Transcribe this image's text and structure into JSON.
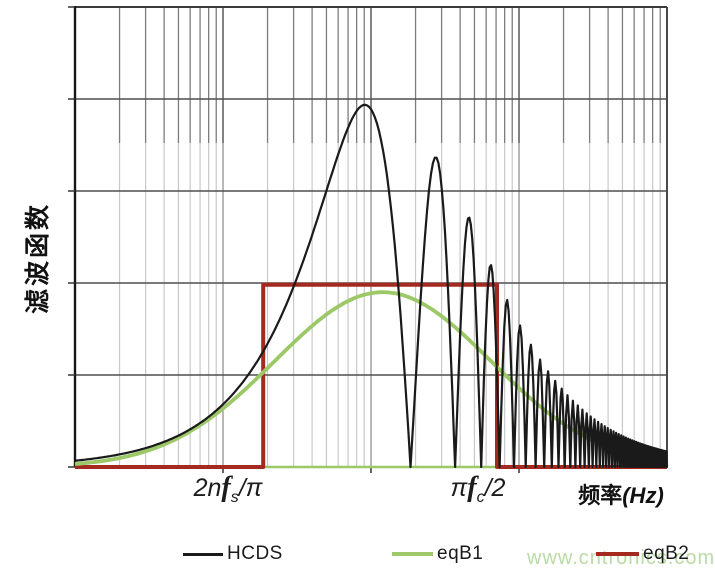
{
  "figure": {
    "y_axis_label": "滤波函数",
    "x_axis_label": {
      "cjk": "频率",
      "unit": "(Hz)"
    },
    "tick1": {
      "pre": "2n",
      "f": "f",
      "sub": "s",
      "post": "/π"
    },
    "tick2": {
      "pre": "π",
      "f": "f",
      "sub": "c",
      "post": "/2"
    },
    "watermark": "www.cntronics.com"
  },
  "style": {
    "background": "#ffffff",
    "axis_color": "#161616",
    "frame_color": "#4a4a4a",
    "grid_major_h": "#4f4f4f",
    "grid_minor_top": "#7d7d7d",
    "grid_minor_bottom": "#c9c9c9",
    "grid_decade_top": "#5a5a5a",
    "grid_decade_bottom": "#9a9a9a",
    "tick_color": "#333333",
    "watermark_color": "#b9dba4"
  },
  "chart_data": {
    "type": "line",
    "title": "",
    "x_axis": {
      "label": "频率(Hz)",
      "scale": "log10",
      "range": [
        1,
        10000
      ],
      "decades": 4,
      "ticks": [
        {
          "value": 10,
          "label": "2nfs/π"
        },
        {
          "value": 100,
          "label": ""
        },
        {
          "value": 1000,
          "label": "πfc/2"
        }
      ],
      "numeric_tick_labels_shown": false
    },
    "y_axis": {
      "label": "滤波函数",
      "range": [
        0,
        5
      ],
      "gridline_step": 1,
      "tick_labels_shown": false
    },
    "grid": {
      "horizontal": true,
      "vertical_log_minor": true
    },
    "legend_position": "bottom",
    "series": [
      {
        "name": "HCDS",
        "color": "#1a1a1a",
        "line_width": 2.2,
        "shape": "rectified oscillation |sin| under a low-pass envelope, zeros touch y=0",
        "model": {
          "type": "abs_sin_times_lowpass",
          "amplitude": 4.03,
          "sin_zero_spacing": 185,
          "lowpass_cutoff": 420
        },
        "key_points": {
          "main_peak": {
            "x": 92,
            "y": 3.94
          },
          "zeros_at_multiples_of": 185,
          "secondary_peaks": [
            {
              "x": 278,
              "y": 3.37
            },
            {
              "x": 462,
              "y": 2.76
            },
            {
              "x": 832,
              "y": 1.81
            },
            {
              "x": 1600,
              "y": 0.98
            }
          ]
        }
      },
      {
        "name": "eqB1",
        "color": "#9cc868",
        "line_width": 3.8,
        "shape": "smooth bell curve (gaussian in log-frequency)",
        "model": {
          "type": "log10_gaussian",
          "amplitude": 1.9,
          "center_log10": 2.08,
          "sigma_log10": 0.73
        },
        "key_points": {
          "peak": {
            "x": 120,
            "y": 1.9
          }
        }
      },
      {
        "name": "eqB2",
        "color": "#a4291f",
        "line_width": 4,
        "shape": "rectangular boxcar, zero outside the box",
        "model": {
          "type": "boxcar",
          "start": 18.7,
          "end": 710,
          "height": 1.98
        }
      }
    ]
  }
}
